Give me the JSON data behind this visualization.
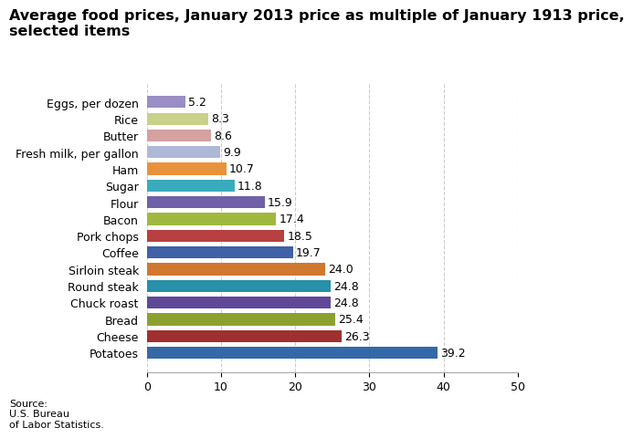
{
  "title": "Average food prices, January 2013 price as multiple of January 1913 price,\nselected items",
  "categories": [
    "Eggs, per dozen",
    "Rice",
    "Butter",
    "Fresh milk, per gallon",
    "Ham",
    "Sugar",
    "Flour",
    "Bacon",
    "Pork chops",
    "Coffee",
    "Sirloin steak",
    "Round steak",
    "Chuck roast",
    "Bread",
    "Cheese",
    "Potatoes"
  ],
  "values": [
    5.2,
    8.3,
    8.6,
    9.9,
    10.7,
    11.8,
    15.9,
    17.4,
    18.5,
    19.7,
    24.0,
    24.8,
    24.8,
    25.4,
    26.3,
    39.2
  ],
  "colors": [
    "#9b8ec4",
    "#c8d08a",
    "#d4a0a0",
    "#b0b8d8",
    "#e8923c",
    "#3aabbc",
    "#7060a8",
    "#a0b840",
    "#b84040",
    "#4060a8",
    "#d07830",
    "#2890a8",
    "#604898",
    "#8ca030",
    "#a03030",
    "#3468a8"
  ],
  "xlim": [
    0,
    50
  ],
  "xticks": [
    0,
    10,
    20,
    30,
    40,
    50
  ],
  "source_text": "Source:\nU.S. Bureau\nof Labor Statistics.",
  "background_color": "#ffffff",
  "grid_color": "#cccccc",
  "title_fontsize": 11.5,
  "label_fontsize": 9,
  "value_fontsize": 9
}
